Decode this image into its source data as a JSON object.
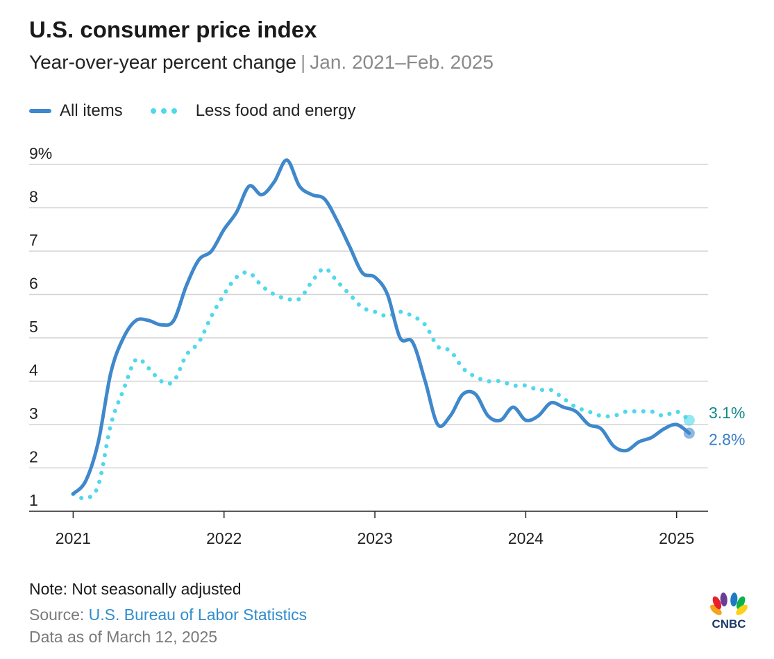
{
  "header": {
    "title": "U.S. consumer price index",
    "subtitle": "Year-over-year percent change",
    "separator": "|",
    "date_range": "Jan. 2021–Feb. 2025"
  },
  "legend": {
    "all_items": "All items",
    "core": "Less food and energy"
  },
  "footer": {
    "note": "Note: Not seasonally adjusted",
    "source_prefix": "Source:",
    "source_name": "U.S. Bureau of Labor Statistics",
    "as_of": "Data as of March 12, 2025"
  },
  "logo": {
    "text": "CNBC"
  },
  "colors": {
    "all_items": "#3f88cc",
    "core": "#4fd9eb",
    "core_label": "#128a8a",
    "all_label": "#3a7fc4",
    "grid": "#d4d4d4"
  },
  "chart_data": {
    "type": "line",
    "title": "U.S. consumer price index",
    "ylabel": "Year-over-year percent change",
    "ylim": [
      1,
      9
    ],
    "y_ticks": [
      {
        "value": 9,
        "label": "9%"
      },
      {
        "value": 8,
        "label": "8"
      },
      {
        "value": 7,
        "label": "7"
      },
      {
        "value": 6,
        "label": "6"
      },
      {
        "value": 5,
        "label": "5"
      },
      {
        "value": 4,
        "label": "4"
      },
      {
        "value": 3,
        "label": "3"
      },
      {
        "value": 2,
        "label": "2"
      },
      {
        "value": 1,
        "label": "1"
      }
    ],
    "x_ticks": [
      {
        "value": 0,
        "label": "2021"
      },
      {
        "value": 12,
        "label": "2022"
      },
      {
        "value": 24,
        "label": "2023"
      },
      {
        "value": 36,
        "label": "2024"
      },
      {
        "value": 48,
        "label": "2025"
      }
    ],
    "xlim": [
      -3.5,
      50.5
    ],
    "series": [
      {
        "name": "All items",
        "style": "solid",
        "end_label": "2.8%",
        "values": [
          1.4,
          1.7,
          2.6,
          4.2,
          5.0,
          5.4,
          5.4,
          5.3,
          5.4,
          6.2,
          6.8,
          7.0,
          7.5,
          7.9,
          8.5,
          8.3,
          8.6,
          9.1,
          8.5,
          8.3,
          8.2,
          7.7,
          7.1,
          6.5,
          6.4,
          6.0,
          5.0,
          4.9,
          4.0,
          3.0,
          3.2,
          3.7,
          3.7,
          3.2,
          3.1,
          3.4,
          3.1,
          3.2,
          3.5,
          3.4,
          3.3,
          3.0,
          2.9,
          2.5,
          2.4,
          2.6,
          2.7,
          2.9,
          3.0,
          2.8
        ]
      },
      {
        "name": "Less food and energy",
        "style": "dotted",
        "end_label": "3.1%",
        "values": [
          1.4,
          1.3,
          1.6,
          3.0,
          3.8,
          4.5,
          4.3,
          4.0,
          4.0,
          4.6,
          4.9,
          5.5,
          6.0,
          6.4,
          6.5,
          6.2,
          6.0,
          5.9,
          5.9,
          6.3,
          6.6,
          6.3,
          6.0,
          5.7,
          5.6,
          5.5,
          5.6,
          5.5,
          5.3,
          4.8,
          4.7,
          4.3,
          4.1,
          4.0,
          4.0,
          3.9,
          3.9,
          3.8,
          3.8,
          3.6,
          3.4,
          3.3,
          3.2,
          3.2,
          3.3,
          3.3,
          3.3,
          3.2,
          3.3,
          3.1
        ]
      }
    ]
  }
}
